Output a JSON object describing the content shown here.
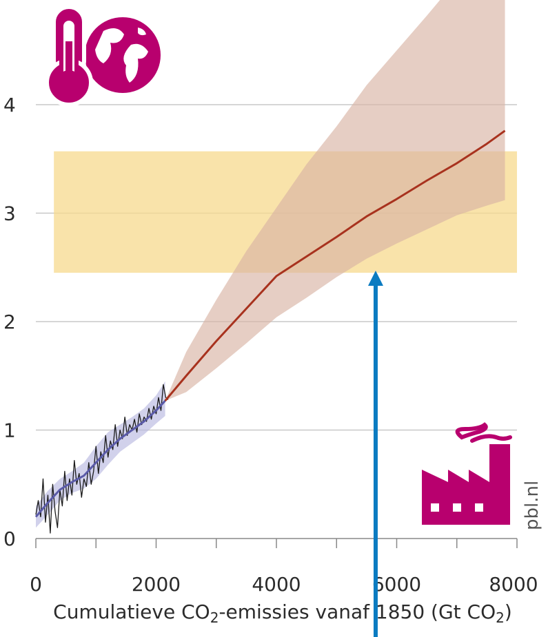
{
  "chart_data": {
    "type": "line",
    "title": "",
    "xlabel_parts": [
      "Cumulatieve CO",
      "2",
      "-emissies vanaf 1850 (Gt CO",
      "2",
      ")"
    ],
    "ylabel": "",
    "xlim": [
      -200,
      8000
    ],
    "ylim": [
      0,
      5
    ],
    "x_ticks": [
      0,
      2000,
      4000,
      6000,
      8000
    ],
    "x_tick_labels": [
      "0",
      "2000",
      "4000",
      "6000",
      "8000"
    ],
    "y_ticks": [
      0,
      1,
      2,
      3,
      4
    ],
    "y_tick_labels": [
      "0",
      "1",
      "2",
      "3",
      "4"
    ],
    "grid": "horizontal",
    "highlight_band": {
      "y_from": 2.45,
      "y_to": 3.57,
      "x_from": 300,
      "x_to": 8000,
      "color": "#f7d98e"
    },
    "arrow": {
      "x": 5650,
      "y_from": -0.7,
      "y_to": 2.47,
      "color": "#0b7bc1"
    },
    "series": [
      {
        "role": "observed",
        "color": "#1a1a1a",
        "x": [
          0,
          40,
          80,
          120,
          160,
          200,
          240,
          280,
          320,
          360,
          400,
          440,
          480,
          520,
          560,
          600,
          640,
          680,
          720,
          760,
          800,
          840,
          880,
          920,
          960,
          1000,
          1040,
          1080,
          1120,
          1160,
          1200,
          1240,
          1280,
          1320,
          1360,
          1400,
          1440,
          1480,
          1520,
          1560,
          1600,
          1640,
          1680,
          1720,
          1760,
          1800,
          1840,
          1880,
          1920,
          1960,
          2000,
          2040,
          2080,
          2120,
          2160,
          2200
        ],
        "y": [
          0.22,
          0.35,
          0.2,
          0.55,
          0.15,
          0.4,
          0.05,
          0.5,
          0.25,
          0.1,
          0.45,
          0.3,
          0.62,
          0.35,
          0.55,
          0.4,
          0.72,
          0.5,
          0.6,
          0.38,
          0.55,
          0.48,
          0.7,
          0.5,
          0.62,
          0.85,
          0.6,
          0.8,
          0.7,
          0.95,
          0.75,
          0.9,
          0.82,
          1.05,
          0.85,
          1.0,
          0.92,
          1.12,
          0.95,
          1.05,
          1.0,
          1.1,
          0.98,
          1.15,
          1.05,
          1.12,
          1.08,
          1.2,
          1.1,
          1.22,
          1.15,
          1.3,
          1.18,
          1.42,
          1.3,
          1.28
        ]
      },
      {
        "role": "observed-smoothed",
        "color": "#5a5aa8",
        "band_color": "#b9b9e0",
        "x": [
          0,
          200,
          400,
          600,
          800,
          1000,
          1200,
          1400,
          1600,
          1800,
          2000,
          2150
        ],
        "y": [
          0.2,
          0.33,
          0.45,
          0.52,
          0.58,
          0.7,
          0.82,
          0.92,
          1.0,
          1.08,
          1.18,
          1.27
        ],
        "lower": [
          0.1,
          0.22,
          0.35,
          0.42,
          0.46,
          0.55,
          0.68,
          0.8,
          0.88,
          0.96,
          1.06,
          1.13
        ],
        "upper": [
          0.3,
          0.44,
          0.55,
          0.62,
          0.7,
          0.85,
          0.98,
          1.05,
          1.12,
          1.2,
          1.32,
          1.45
        ]
      },
      {
        "role": "projection",
        "color": "#a8321e",
        "band_color": "#d9b3a5",
        "x": [
          2150,
          2500,
          3000,
          3500,
          4000,
          4500,
          5000,
          5500,
          6000,
          6500,
          7000,
          7500,
          7800
        ],
        "y": [
          1.27,
          1.5,
          1.82,
          2.12,
          2.42,
          2.6,
          2.78,
          2.97,
          3.13,
          3.3,
          3.46,
          3.64,
          3.76
        ],
        "lower": [
          1.27,
          1.35,
          1.57,
          1.8,
          2.04,
          2.22,
          2.41,
          2.58,
          2.72,
          2.85,
          2.98,
          3.07,
          3.12
        ],
        "upper": [
          1.27,
          1.72,
          2.2,
          2.65,
          3.05,
          3.45,
          3.8,
          4.18,
          4.5,
          4.82,
          5.15,
          5.45,
          5.75
        ]
      }
    ]
  },
  "source_label": "pbl.nl",
  "colors": {
    "icon": "#b8006e",
    "grid": "#c8c8c8",
    "axis": "#888888"
  }
}
